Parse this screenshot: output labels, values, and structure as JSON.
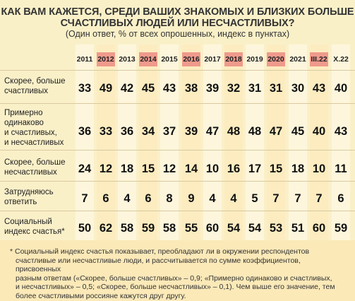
{
  "title_line1": "КАК ВАМ КАЖЕТСЯ, СРЕДИ ВАШИХ ЗНАКОМЫХ И БЛИЗКИХ БОЛЬШЕ",
  "title_line2": "СЧАСТЛИВЫХ ЛЮДЕЙ ИЛИ НЕСЧАСТЛИВЫХ?",
  "subtitle": "(Один ответ, % от всех опрошенных, индекс в пунктах)",
  "colors": {
    "highlight": "#ef9a8c",
    "band_light": "#fdf6dc",
    "band_dark": "#fcecc0",
    "background": "#faf0c8"
  },
  "years": [
    "2011",
    "2012",
    "2013",
    "2014",
    "2015",
    "2016",
    "2017",
    "2018",
    "2019",
    "2020",
    "2021",
    "III.22",
    "X.22"
  ],
  "highlighted_years": [
    "2012",
    "2014",
    "2016",
    "2018",
    "2020",
    "III.22"
  ],
  "rows": [
    {
      "label_lines": [
        "Скорее, больше",
        "счастливых"
      ],
      "values": [
        "33",
        "49",
        "42",
        "45",
        "43",
        "38",
        "39",
        "32",
        "31",
        "31",
        "30",
        "43",
        "40"
      ]
    },
    {
      "label_lines": [
        "Примерно",
        "одинаково",
        "и счастливых,",
        "и несчастливых"
      ],
      "values": [
        "36",
        "33",
        "36",
        "34",
        "37",
        "39",
        "47",
        "48",
        "48",
        "47",
        "45",
        "40",
        "43"
      ]
    },
    {
      "label_lines": [
        "Скорее, больше",
        "несчастливых"
      ],
      "values": [
        "24",
        "12",
        "18",
        "15",
        "12",
        "14",
        "10",
        "16",
        "17",
        "15",
        "18",
        "10",
        "11"
      ]
    },
    {
      "label_lines": [
        "Затрудняюсь",
        "ответить"
      ],
      "values": [
        "7",
        "6",
        "4",
        "6",
        "8",
        "9",
        "4",
        "4",
        "5",
        "7",
        "7",
        "7",
        "6"
      ]
    },
    {
      "label_lines": [
        "Социальный",
        "индекс счастья*"
      ],
      "values": [
        "50",
        "62",
        "58",
        "59",
        "58",
        "55",
        "60",
        "54",
        "54",
        "53",
        "51",
        "60",
        "59"
      ]
    }
  ],
  "footnote_lines": [
    "* Социальный индекс счастья показывает, преобладают ли в окружении респондентов",
    "счастливые или несчастливые люди, и рассчитывается по сумме коэффициентов, присвоенных",
    "разным ответам («Скорее, больше счастливых» – 0,9; «Примерно одинаково и счастливых,",
    "и несчастливых» – 0,5; «Скорее, больше несчастливых» – 0,1). Чем выше его значение, тем",
    "более счастливыми россияне кажутся друг другу."
  ]
}
